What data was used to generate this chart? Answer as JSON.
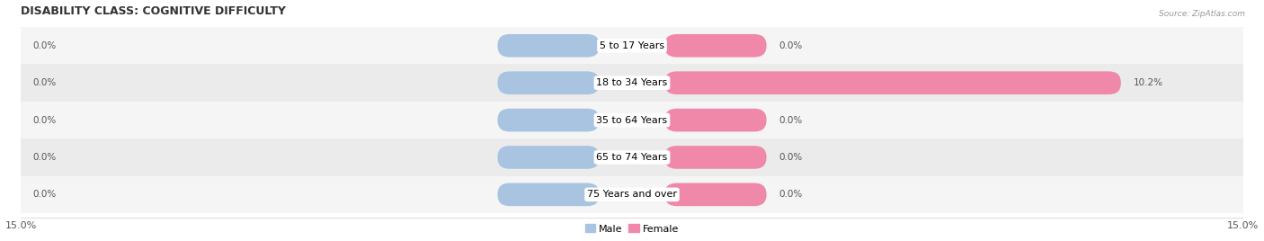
{
  "title": "DISABILITY CLASS: COGNITIVE DIFFICULTY",
  "source": "Source: ZipAtlas.com",
  "categories": [
    "5 to 17 Years",
    "18 to 34 Years",
    "35 to 64 Years",
    "65 to 74 Years",
    "75 Years and over"
  ],
  "male_values": [
    0.0,
    0.0,
    0.0,
    0.0,
    0.0
  ],
  "female_values": [
    0.0,
    10.2,
    0.0,
    0.0,
    0.0
  ],
  "x_max": 15.0,
  "male_color": "#a8c4e0",
  "female_color": "#f088aa",
  "row_bg_light": "#f5f5f5",
  "row_bg_dark": "#ebebeb",
  "label_color": "#555555",
  "title_fontsize": 9,
  "axis_fontsize": 8,
  "bar_label_fontsize": 7.5,
  "category_fontsize": 8,
  "min_bar_width": 1.5
}
